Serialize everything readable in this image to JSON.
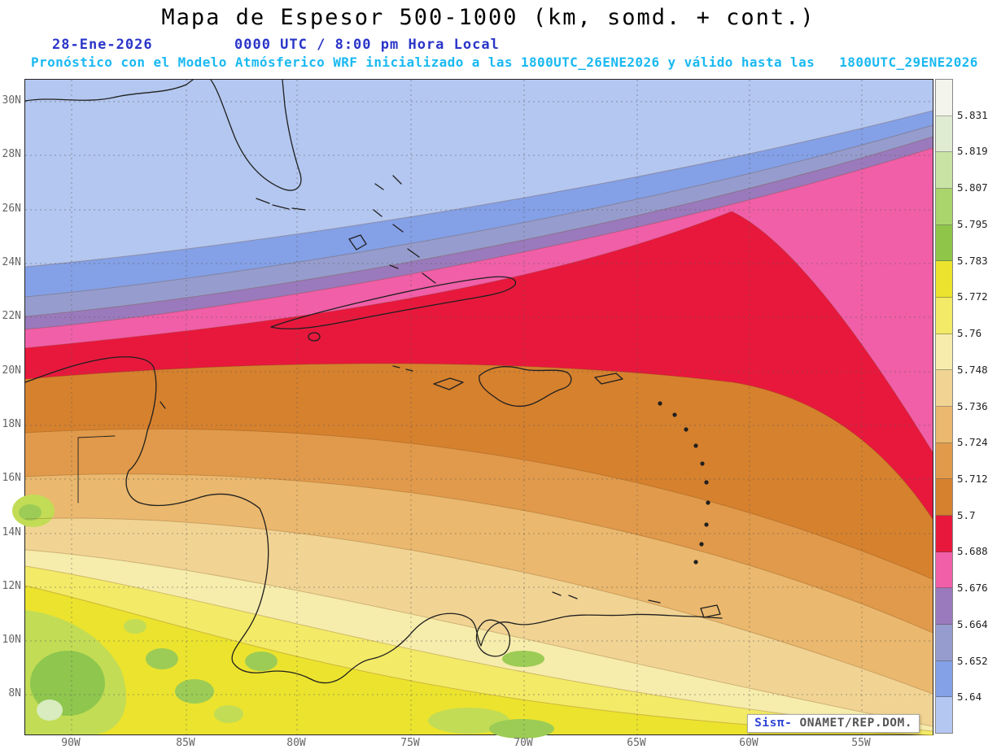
{
  "header": {
    "title": "Mapa de Espesor 500-1000 (km, somd. + cont.)",
    "date": "28-Ene-2026",
    "time": "0000 UTC / 8:00 pm Hora Local",
    "forecast": "Pronóstico con el Modelo Atmósferico WRF inicializado a las 1800UTC_26ENE2026 y válido hasta las   1800UTC_29ENE2026",
    "title_color": "#000000",
    "date_color": "#2a35c8",
    "forecast_color": "#1ab9f2"
  },
  "map": {
    "lat_labels": [
      "30N",
      "28N",
      "26N",
      "24N",
      "22N",
      "20N",
      "18N",
      "16N",
      "14N",
      "12N",
      "10N",
      "8N"
    ],
    "lon_labels": [
      "90W",
      "85W",
      "80W",
      "75W",
      "70W",
      "65W",
      "60W",
      "55W"
    ],
    "attribution": {
      "brand": "Sisπ-",
      "org": " ONAMET/REP.DOM."
    }
  },
  "colorbar": {
    "labels": [
      "5.831",
      "5.819",
      "5.807",
      "5.795",
      "5.783",
      "5.772",
      "5.76",
      "5.748",
      "5.736",
      "5.724",
      "5.712",
      "5.7",
      "5.688",
      "5.676",
      "5.664",
      "5.652",
      "5.64"
    ],
    "colors": [
      "#f3f5ec",
      "#dfecd2",
      "#c8e3a4",
      "#aad46c",
      "#8fc649",
      "#ece32e",
      "#f3ea67",
      "#f6ecac",
      "#f1d494",
      "#eab86e",
      "#e19a4b",
      "#d6812e",
      "#e8183d",
      "#f05fa8",
      "#9a7abc",
      "#969dce",
      "#84a0e6",
      "#b4c7f0"
    ]
  },
  "bands": {
    "lightblue": "#b4c7f0",
    "blue": "#84a0e6",
    "slate": "#969dce",
    "purple": "#9a7abc",
    "pink": "#f05fa8",
    "red": "#e8183d",
    "darkorange": "#d6812e",
    "orange": "#e19a4b",
    "lightorange": "#eab86e",
    "tan": "#f1d494",
    "cream": "#f6ecac",
    "paleyellow": "#f3ea67",
    "yellow": "#ece32e",
    "yellowgreen": "#c2dc55",
    "green": "#9ccc55",
    "deepgreen": "#8ec64e",
    "palegreen": "#d8ecc0",
    "coast": "#1f1f1f",
    "grid": "#555555"
  }
}
